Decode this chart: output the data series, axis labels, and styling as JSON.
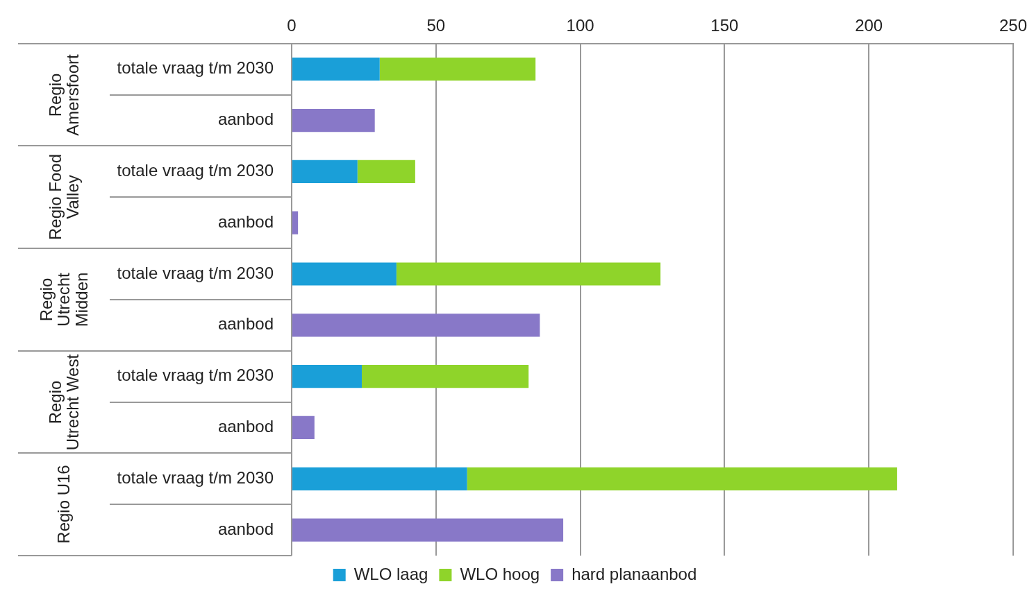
{
  "chart_data": {
    "type": "bar",
    "orientation": "horizontal",
    "stacked": true,
    "categories": [
      "totale vraag t/m 2030",
      "aanbod",
      "totale vraag t/m 2030",
      "aanbod",
      "totale vraag t/m 2030",
      "aanbod",
      "totale vraag t/m 2030",
      "aanbod",
      "totale vraag t/m 2030",
      "aanbod"
    ],
    "series": [
      {
        "name": "WLO laag",
        "color": "#1a9fd8",
        "values": [
          30.5,
          null,
          22.8,
          null,
          36.3,
          null,
          24.3,
          null,
          60.8,
          null
        ]
      },
      {
        "name": "WLO hoog",
        "color": "#8fd42a",
        "values": [
          54,
          null,
          20,
          null,
          91.5,
          null,
          57.8,
          null,
          149,
          null
        ]
      },
      {
        "name": "hard planaanbod",
        "color": "#8878c8",
        "values": [
          null,
          28.8,
          null,
          2.2,
          null,
          86,
          null,
          7.9,
          null,
          94.1
        ]
      }
    ],
    "annotations": [
      "Regio Amersfoort",
      "Regio Food Valley",
      "Regio Utrecht Midden",
      "Regio Utrecht West",
      "Regio U16"
    ],
    "xlim": [
      0,
      250
    ],
    "xticks": [
      0,
      50,
      100,
      150,
      200,
      250
    ],
    "grid": "x",
    "legend": "bottom"
  }
}
